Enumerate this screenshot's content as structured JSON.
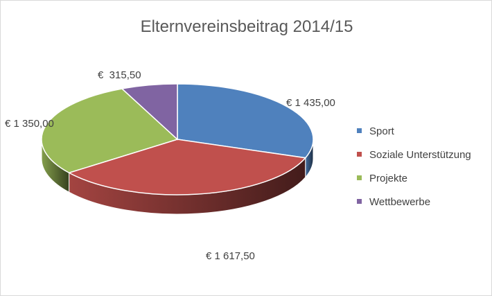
{
  "chart_data": {
    "type": "pie",
    "title": "Elternvereinsbeitrag 2014/15",
    "slices": [
      {
        "name": "Sport",
        "value": 1435.0,
        "label": "€ 1 435,00",
        "color": "#4f81bd"
      },
      {
        "name": "Soziale Unterstützung",
        "value": 1617.5,
        "label": "€ 1 617,50",
        "color": "#c0504d"
      },
      {
        "name": "Projekte",
        "value": 1350.0,
        "label": "€ 1 350,00",
        "color": "#9bbb59"
      },
      {
        "name": "Wettbewerbe",
        "value": 315.5,
        "label": "€  315,50",
        "color": "#8064a2"
      }
    ],
    "legend_position": "right",
    "style": "3d"
  }
}
